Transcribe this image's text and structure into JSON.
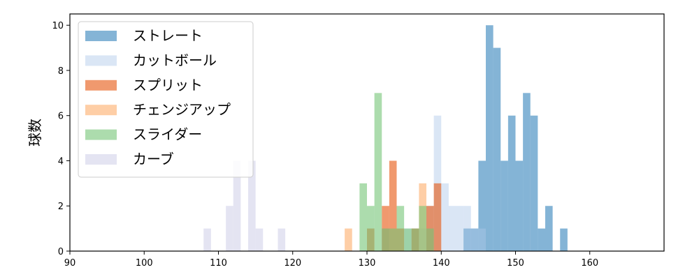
{
  "chart_data": {
    "type": "histogram",
    "xlabel": "",
    "ylabel": "球数",
    "xlim": [
      90,
      170
    ],
    "ylim": [
      0,
      10.5
    ],
    "xticks": [
      90,
      100,
      110,
      120,
      130,
      140,
      150,
      160
    ],
    "yticks": [
      0,
      2,
      4,
      6,
      8,
      10
    ],
    "legend_position": "top-left",
    "grid": false,
    "series": [
      {
        "name": "ストレート",
        "color": "#1f77b4",
        "alpha": 0.55,
        "bins": [
          [
            143,
            144,
            1
          ],
          [
            144,
            145,
            1
          ],
          [
            145,
            146,
            4
          ],
          [
            146,
            147,
            10
          ],
          [
            147,
            148,
            9
          ],
          [
            148,
            149,
            4
          ],
          [
            149,
            150,
            6
          ],
          [
            150,
            151,
            4
          ],
          [
            151,
            152,
            7
          ],
          [
            152,
            153,
            6
          ],
          [
            153,
            154,
            1
          ],
          [
            154,
            155,
            2
          ],
          [
            156,
            157,
            1
          ]
        ]
      },
      {
        "name": "カットボール",
        "color": "#aec7e8",
        "alpha": 0.45,
        "bins": [
          [
            132,
            133,
            1
          ],
          [
            135,
            136,
            1
          ],
          [
            136,
            137,
            1
          ],
          [
            137,
            138,
            1
          ],
          [
            138,
            139,
            2
          ],
          [
            139,
            140,
            6
          ],
          [
            140,
            141,
            3
          ],
          [
            141,
            142,
            2
          ],
          [
            142,
            143,
            2
          ],
          [
            143,
            144,
            2
          ],
          [
            144,
            145,
            1
          ],
          [
            145,
            146,
            1
          ]
        ]
      },
      {
        "name": "スプリット",
        "color": "#e6550d",
        "alpha": 0.6,
        "bins": [
          [
            130,
            131,
            1
          ],
          [
            132,
            133,
            2
          ],
          [
            133,
            134,
            4
          ],
          [
            134,
            135,
            1
          ],
          [
            136,
            137,
            1
          ],
          [
            138,
            139,
            2
          ],
          [
            139,
            140,
            3
          ]
        ]
      },
      {
        "name": "チェンジアップ",
        "color": "#fdae6b",
        "alpha": 0.6,
        "bins": [
          [
            127,
            128,
            1
          ],
          [
            137,
            138,
            3
          ]
        ]
      },
      {
        "name": "スライダー",
        "color": "#74c476",
        "alpha": 0.6,
        "bins": [
          [
            129,
            130,
            3
          ],
          [
            130,
            131,
            2
          ],
          [
            131,
            132,
            7
          ],
          [
            132,
            133,
            1
          ],
          [
            133,
            134,
            1
          ],
          [
            134,
            135,
            2
          ],
          [
            135,
            136,
            1
          ],
          [
            136,
            137,
            1
          ],
          [
            137,
            138,
            2
          ],
          [
            138,
            139,
            1
          ]
        ]
      },
      {
        "name": "カーブ",
        "color": "#d9d9ec",
        "alpha": 0.7,
        "bins": [
          [
            108,
            109,
            1
          ],
          [
            111,
            112,
            2
          ],
          [
            112,
            113,
            4
          ],
          [
            114,
            115,
            4
          ],
          [
            115,
            116,
            1
          ],
          [
            118,
            119,
            1
          ]
        ]
      }
    ]
  }
}
